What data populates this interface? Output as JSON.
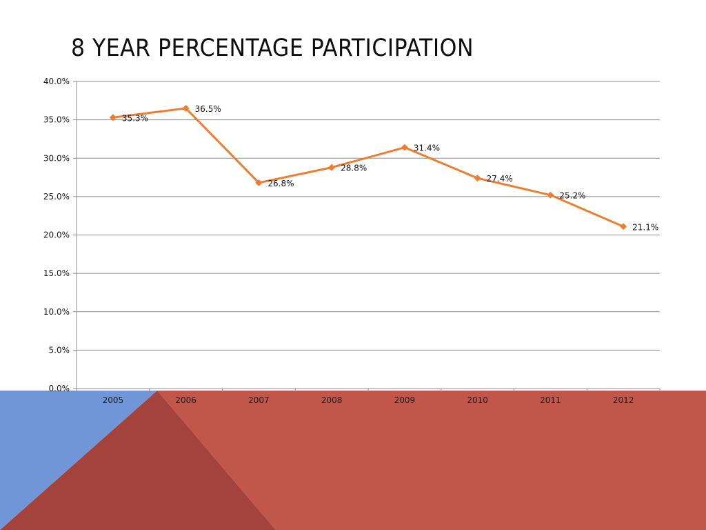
{
  "slide": {
    "title": "8 YEAR PERCENTAGE PARTICIPATION"
  },
  "colors": {
    "series": "#ED7D31",
    "gridline": "#8c8c8c",
    "decor_blue": "#7196D8",
    "decor_red": "#C0574A",
    "decor_dark_red": "#A3433C"
  },
  "chart_data": {
    "type": "line",
    "title": "",
    "xlabel": "",
    "ylabel": "",
    "categories": [
      "2005",
      "2006",
      "2007",
      "2008",
      "2009",
      "2010",
      "2011",
      "2012"
    ],
    "series": [
      {
        "values": [
          35.3,
          36.5,
          26.8,
          28.8,
          31.4,
          27.4,
          25.2,
          21.1
        ],
        "data_labels": [
          "35.3%",
          "36.5%",
          "26.8%",
          "28.8%",
          "31.4%",
          "27.4%",
          "25.2%",
          "21.1%"
        ],
        "marker": "diamond"
      }
    ],
    "ylim": [
      0,
      40
    ],
    "yticks": [
      0,
      5,
      10,
      15,
      20,
      25,
      30,
      35,
      40
    ],
    "ytick_labels": [
      "0.0%",
      "5.0%",
      "10.0%",
      "15.0%",
      "20.0%",
      "25.0%",
      "30.0%",
      "35.0%",
      "40.0%"
    ],
    "grid": true,
    "legend": "none"
  }
}
